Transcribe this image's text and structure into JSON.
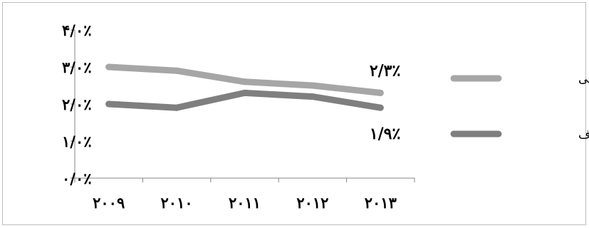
{
  "chart_data": {
    "type": "line",
    "categories": [
      "۲۰۰۹",
      "۲۰۱۰",
      "۲۰۱۱",
      "۲۰۱۲",
      "۲۰۱۳"
    ],
    "y_tick_labels": [
      "۰/۰٪",
      "۱/۰٪",
      "۲/۰٪",
      "۳/۰٪",
      "۴/۰٪"
    ],
    "ylim": [
      0,
      4
    ],
    "grid": false,
    "legend_position": "right",
    "series": [
      {
        "name": "بانکداری اسلامی",
        "values": [
          3.0,
          2.9,
          2.6,
          2.5,
          2.3
        ],
        "color": "#a6a6a6",
        "end_label": "۲/۳٪"
      },
      {
        "name": "بانکداری متعارف",
        "values": [
          2.0,
          1.9,
          2.3,
          2.2,
          1.9
        ],
        "color": "#7f7f7f",
        "end_label": "۱/۹٪"
      }
    ]
  }
}
